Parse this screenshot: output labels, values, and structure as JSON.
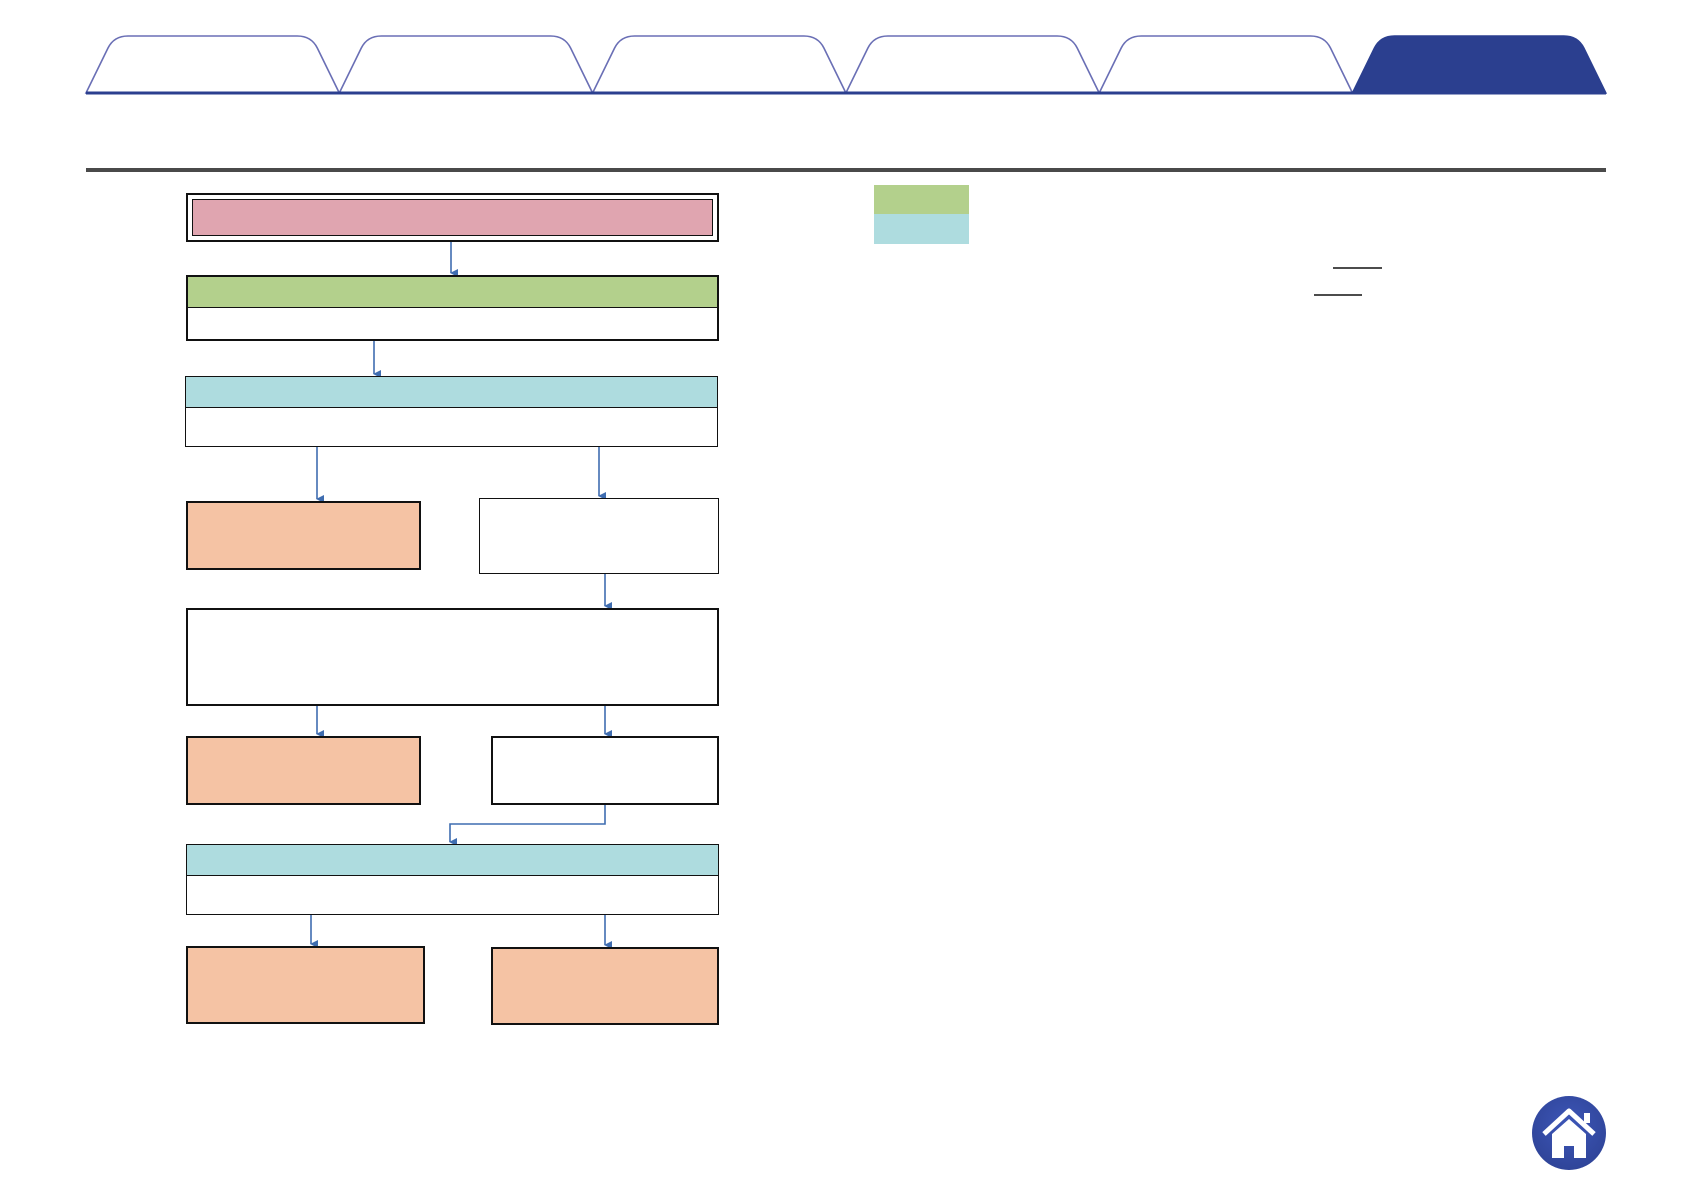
{
  "tabs": [
    {
      "label": "",
      "active": false
    },
    {
      "label": "",
      "active": false
    },
    {
      "label": "",
      "active": false
    },
    {
      "label": "",
      "active": false
    },
    {
      "label": "",
      "active": false
    },
    {
      "label": "",
      "active": true
    }
  ],
  "colors": {
    "tab_active": "#2b3f8f",
    "tab_border": "#6a6fb5",
    "rule": "#4a4a4a",
    "pink": "#e0a5b0",
    "green": "#b3d08c",
    "cyan": "#aedcdf",
    "orange": "#f5c3a4",
    "arrow": "#3f6db0"
  },
  "icons": {
    "home": "home-icon"
  }
}
